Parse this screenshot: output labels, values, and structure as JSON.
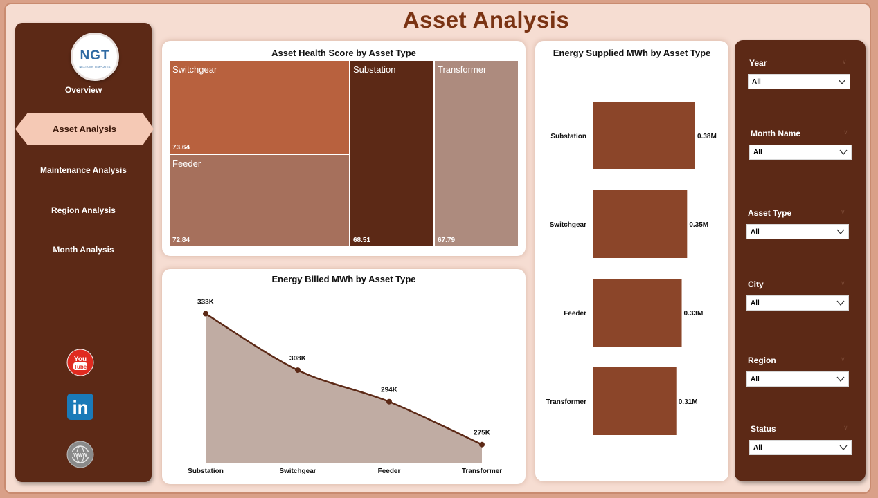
{
  "page": {
    "title": "Asset  Analysis"
  },
  "logo": {
    "text": "NGT",
    "subtext": "NEXT GEN TEMPLATES"
  },
  "nav": {
    "items": [
      {
        "label": "Overview",
        "active": false
      },
      {
        "label": "Asset Analysis",
        "active": true
      },
      {
        "label": "Maintenance Analysis",
        "active": false
      },
      {
        "label": "Region Analysis",
        "active": false
      },
      {
        "label": "Month Analysis",
        "active": false
      }
    ],
    "social": [
      "youtube-icon",
      "linkedin-icon",
      "website-icon"
    ],
    "youtube_text_1": "You",
    "youtube_text_2": "Tube",
    "linkedin_text": "in",
    "website_text": "WWW"
  },
  "treemap": {
    "title": "Asset Health Score by Asset Type",
    "cells": [
      {
        "name": "Switchgear",
        "value": "73.64",
        "color": "#b8613e"
      },
      {
        "name": "Feeder",
        "value": "72.84",
        "color": "#a6705c"
      },
      {
        "name": "Substation",
        "value": "68.51",
        "color": "#5c2916"
      },
      {
        "name": "Transformer",
        "value": "67.79",
        "color": "#ad8b7e"
      }
    ]
  },
  "area_chart": {
    "title": "Energy Billed MWh by Asset Type"
  },
  "bar_chart": {
    "title": "Energy Supplied MWh by Asset Type"
  },
  "chart_data": [
    {
      "type": "table",
      "title": "Asset Health Score by Asset Type",
      "categories": [
        "Switchgear",
        "Feeder",
        "Substation",
        "Transformer"
      ],
      "values": [
        73.64,
        72.84,
        68.51,
        67.79
      ]
    },
    {
      "type": "area",
      "title": "Energy Billed MWh by Asset Type",
      "categories": [
        "Substation",
        "Switchgear",
        "Feeder",
        "Transformer"
      ],
      "values": [
        333000,
        308000,
        294000,
        275000
      ],
      "labels": [
        "333K",
        "308K",
        "294K",
        "275K"
      ],
      "color": "#c0aca3",
      "line_color": "#5c2916"
    },
    {
      "type": "bar",
      "title": "Energy Supplied MWh by Asset Type",
      "categories": [
        "Substation",
        "Switchgear",
        "Feeder",
        "Transformer"
      ],
      "values": [
        380000,
        350000,
        330000,
        310000
      ],
      "labels": [
        "0.38M",
        "0.35M",
        "0.33M",
        "0.31M"
      ],
      "color": "#8b4529"
    }
  ],
  "slicers": [
    {
      "label": "Year",
      "value": "All"
    },
    {
      "label": "Month Name",
      "value": "All"
    },
    {
      "label": "Asset Type",
      "value": "All"
    },
    {
      "label": "City",
      "value": "All"
    },
    {
      "label": "Region",
      "value": "All"
    },
    {
      "label": "Status",
      "value": "All"
    }
  ],
  "colors": {
    "brand_dark": "#5c2916",
    "title": "#7a3313",
    "background": "#f6ddd2",
    "active_nav": "#f5c9b5"
  }
}
